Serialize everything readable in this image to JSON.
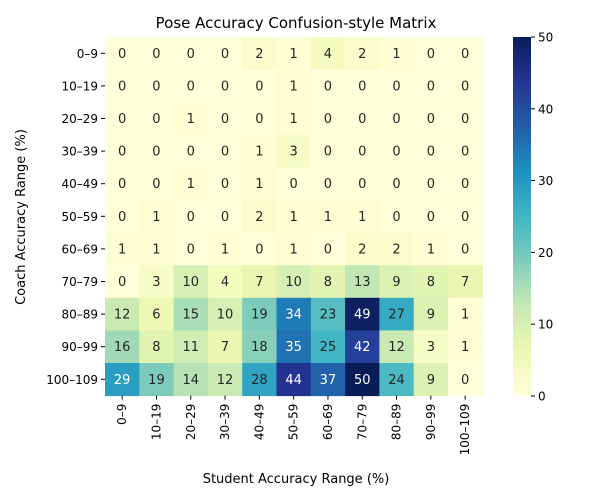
{
  "chart_data": {
    "type": "heatmap",
    "title": "Pose Accuracy Confusion-style Matrix",
    "xlabel": "Student Accuracy Range (%)",
    "ylabel": "Coach Accuracy Range (%)",
    "x_categories": [
      "0–9",
      "10–19",
      "20–29",
      "30–39",
      "40–49",
      "50–59",
      "60–69",
      "70–79",
      "80–89",
      "90–99",
      "100–109"
    ],
    "y_categories": [
      "0–9",
      "10–19",
      "20–29",
      "30–39",
      "40–49",
      "50–59",
      "60–69",
      "70–79",
      "80–89",
      "90–99",
      "100–109"
    ],
    "values": [
      [
        0,
        0,
        0,
        0,
        2,
        1,
        4,
        2,
        1,
        0,
        0
      ],
      [
        0,
        0,
        0,
        0,
        0,
        1,
        0,
        0,
        0,
        0,
        0
      ],
      [
        0,
        0,
        1,
        0,
        0,
        1,
        0,
        0,
        0,
        0,
        0
      ],
      [
        0,
        0,
        0,
        0,
        1,
        3,
        0,
        0,
        0,
        0,
        0
      ],
      [
        0,
        0,
        1,
        0,
        1,
        0,
        0,
        0,
        0,
        0,
        0
      ],
      [
        0,
        1,
        0,
        0,
        2,
        1,
        1,
        1,
        0,
        0,
        0
      ],
      [
        1,
        1,
        0,
        1,
        0,
        1,
        0,
        2,
        2,
        1,
        0
      ],
      [
        0,
        3,
        10,
        4,
        7,
        10,
        8,
        13,
        9,
        8,
        7
      ],
      [
        12,
        6,
        15,
        10,
        19,
        34,
        23,
        49,
        27,
        9,
        1
      ],
      [
        16,
        8,
        11,
        7,
        18,
        35,
        25,
        42,
        12,
        3,
        1
      ],
      [
        29,
        19,
        14,
        12,
        28,
        44,
        37,
        50,
        24,
        9,
        0
      ]
    ],
    "colorbar": {
      "min": 0,
      "max": 50,
      "ticks": [
        0,
        10,
        20,
        30,
        40,
        50
      ],
      "colormap": "YlGnBu"
    }
  }
}
